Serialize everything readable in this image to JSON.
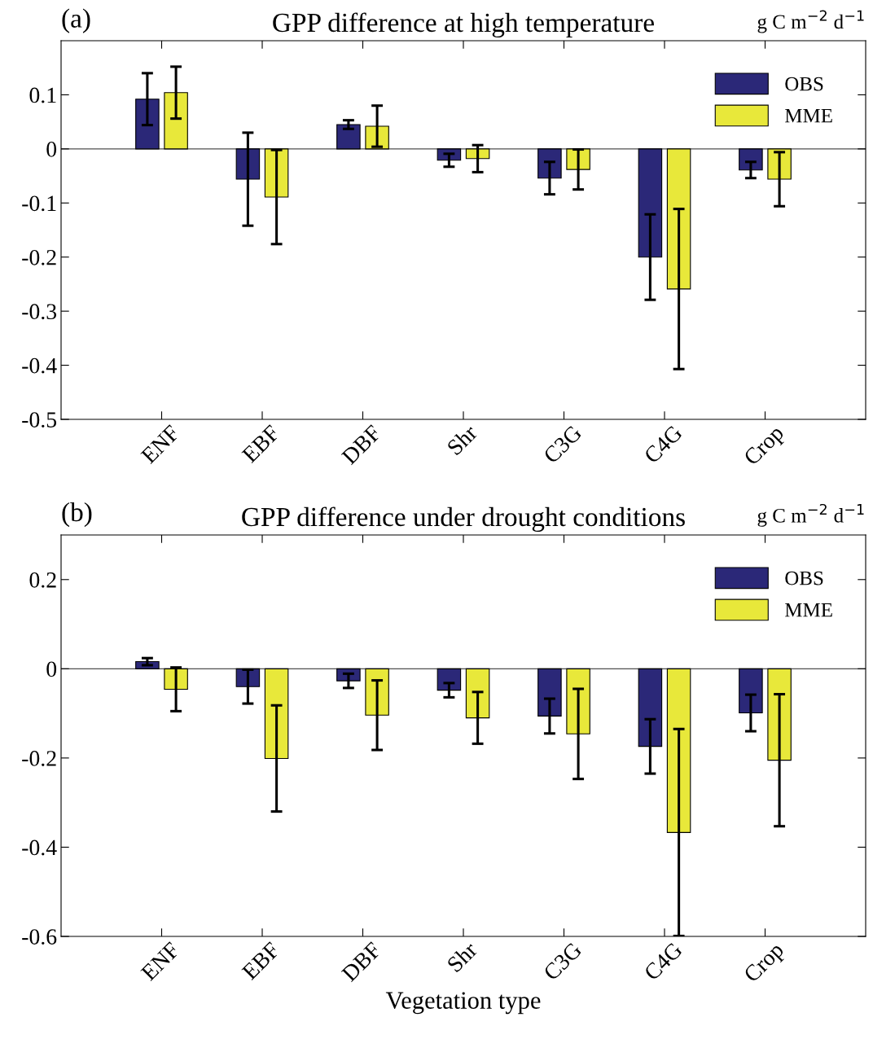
{
  "chart_data": [
    {
      "type": "bar",
      "title": "GPP difference at high temperature",
      "annotations": [
        "(a)",
        "g C m$^{−2}$ d$^{−1}$"
      ],
      "categories": [
        "ENF",
        "EBF",
        "DBF",
        "Shr",
        "C3G",
        "C4G",
        "Crop"
      ],
      "series": [
        {
          "name": "OBS",
          "color": "#2b2878",
          "values": [
            0.092,
            -0.056,
            0.045,
            -0.021,
            -0.054,
            -0.2,
            -0.039
          ],
          "errors": [
            0.048,
            0.086,
            0.008,
            0.012,
            0.03,
            0.079,
            0.015
          ]
        },
        {
          "name": "MME",
          "color": "#e8e83a",
          "values": [
            0.104,
            -0.089,
            0.042,
            -0.018,
            -0.038,
            -0.259,
            -0.056
          ],
          "errors": [
            0.048,
            0.087,
            0.038,
            0.025,
            0.037,
            0.148,
            0.05
          ]
        }
      ],
      "ylim": [
        -0.5,
        0.2
      ],
      "yticks": [
        -0.5,
        -0.4,
        -0.3,
        -0.2,
        -0.1,
        0,
        0.1
      ],
      "ref_lines": [
        {
          "axis": "y",
          "value": 0,
          "color": "#505050"
        }
      ],
      "legend": "top right",
      "grid": false
    },
    {
      "type": "bar",
      "title": "GPP difference under drought conditions",
      "xlabel": "Vegetation type",
      "annotations": [
        "(b)",
        "g C m$^{−2}$ d$^{−1}$"
      ],
      "categories": [
        "ENF",
        "EBF",
        "DBF",
        "Shr",
        "C3G",
        "C4G",
        "Crop"
      ],
      "series": [
        {
          "name": "OBS",
          "color": "#2b2878",
          "values": [
            0.016,
            -0.04,
            -0.027,
            -0.048,
            -0.106,
            -0.174,
            -0.099
          ],
          "errors": [
            0.008,
            0.038,
            0.016,
            0.016,
            0.039,
            0.061,
            0.041
          ]
        },
        {
          "name": "MME",
          "color": "#e8e83a",
          "values": [
            -0.046,
            -0.201,
            -0.104,
            -0.11,
            -0.146,
            -0.367,
            -0.205
          ],
          "errors": [
            0.049,
            0.119,
            0.078,
            0.058,
            0.101,
            0.232,
            0.148
          ]
        }
      ],
      "ylim": [
        -0.6,
        0.3
      ],
      "yticks": [
        -0.6,
        -0.4,
        -0.2,
        0,
        0.2
      ],
      "ref_lines": [
        {
          "axis": "y",
          "value": 0,
          "color": "#505050"
        }
      ],
      "legend": "top right",
      "grid": false
    }
  ]
}
